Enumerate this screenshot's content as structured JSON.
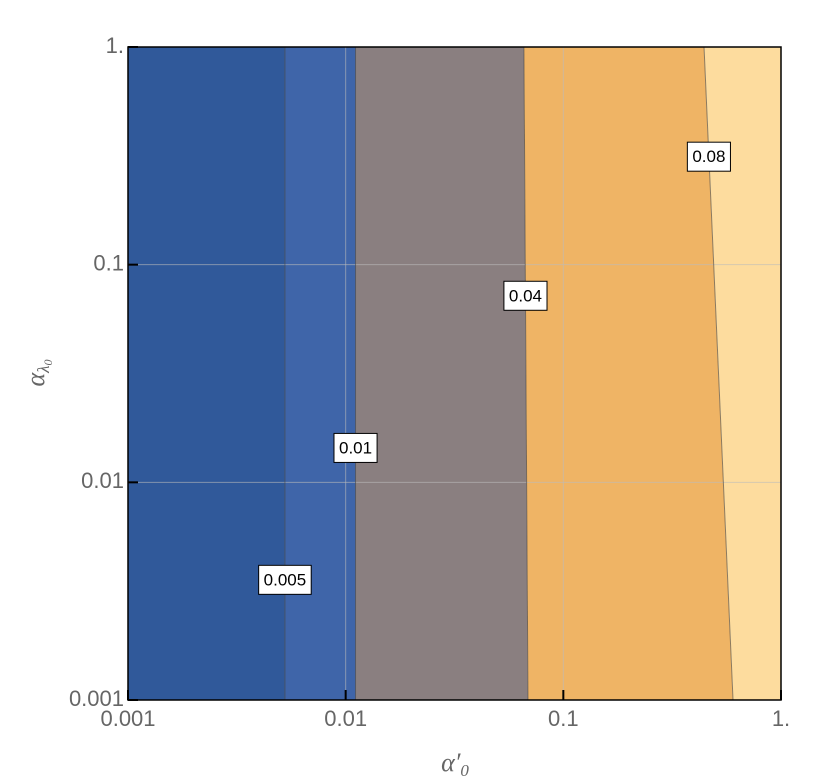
{
  "chart_data": {
    "type": "contour",
    "x_label": {
      "main": "α′",
      "sub": "0"
    },
    "y_label": {
      "main": "α",
      "sub": "λ",
      "subsub": "0"
    },
    "x_scale": "log",
    "y_scale": "log",
    "xlim": [
      0.001,
      1
    ],
    "ylim": [
      0.001,
      1
    ],
    "xticks": [
      0.001,
      0.01,
      0.1,
      {
        "value": 1,
        "label": "1."
      }
    ],
    "yticks": [
      0.001,
      0.01,
      0.1,
      {
        "value": 1,
        "label": "1."
      }
    ],
    "grid": true,
    "band_colors": [
      "#30599a",
      "#3f65a9",
      "#8a7f80",
      "#efb465",
      "#fddc9e"
    ],
    "contours": [
      {
        "level": 0.005,
        "x": [
          0.00526,
          0.00526
        ],
        "y": [
          0.001,
          1
        ]
      },
      {
        "level": 0.01,
        "x": [
          0.0111,
          0.0111
        ],
        "y": [
          0.001,
          1
        ]
      },
      {
        "level": 0.04,
        "x": [
          0.0688,
          0.0659
        ],
        "y": [
          0.001,
          1
        ]
      },
      {
        "level": 0.08,
        "x": [
          0.602,
          0.443
        ],
        "y": [
          0.001,
          1
        ]
      }
    ]
  }
}
